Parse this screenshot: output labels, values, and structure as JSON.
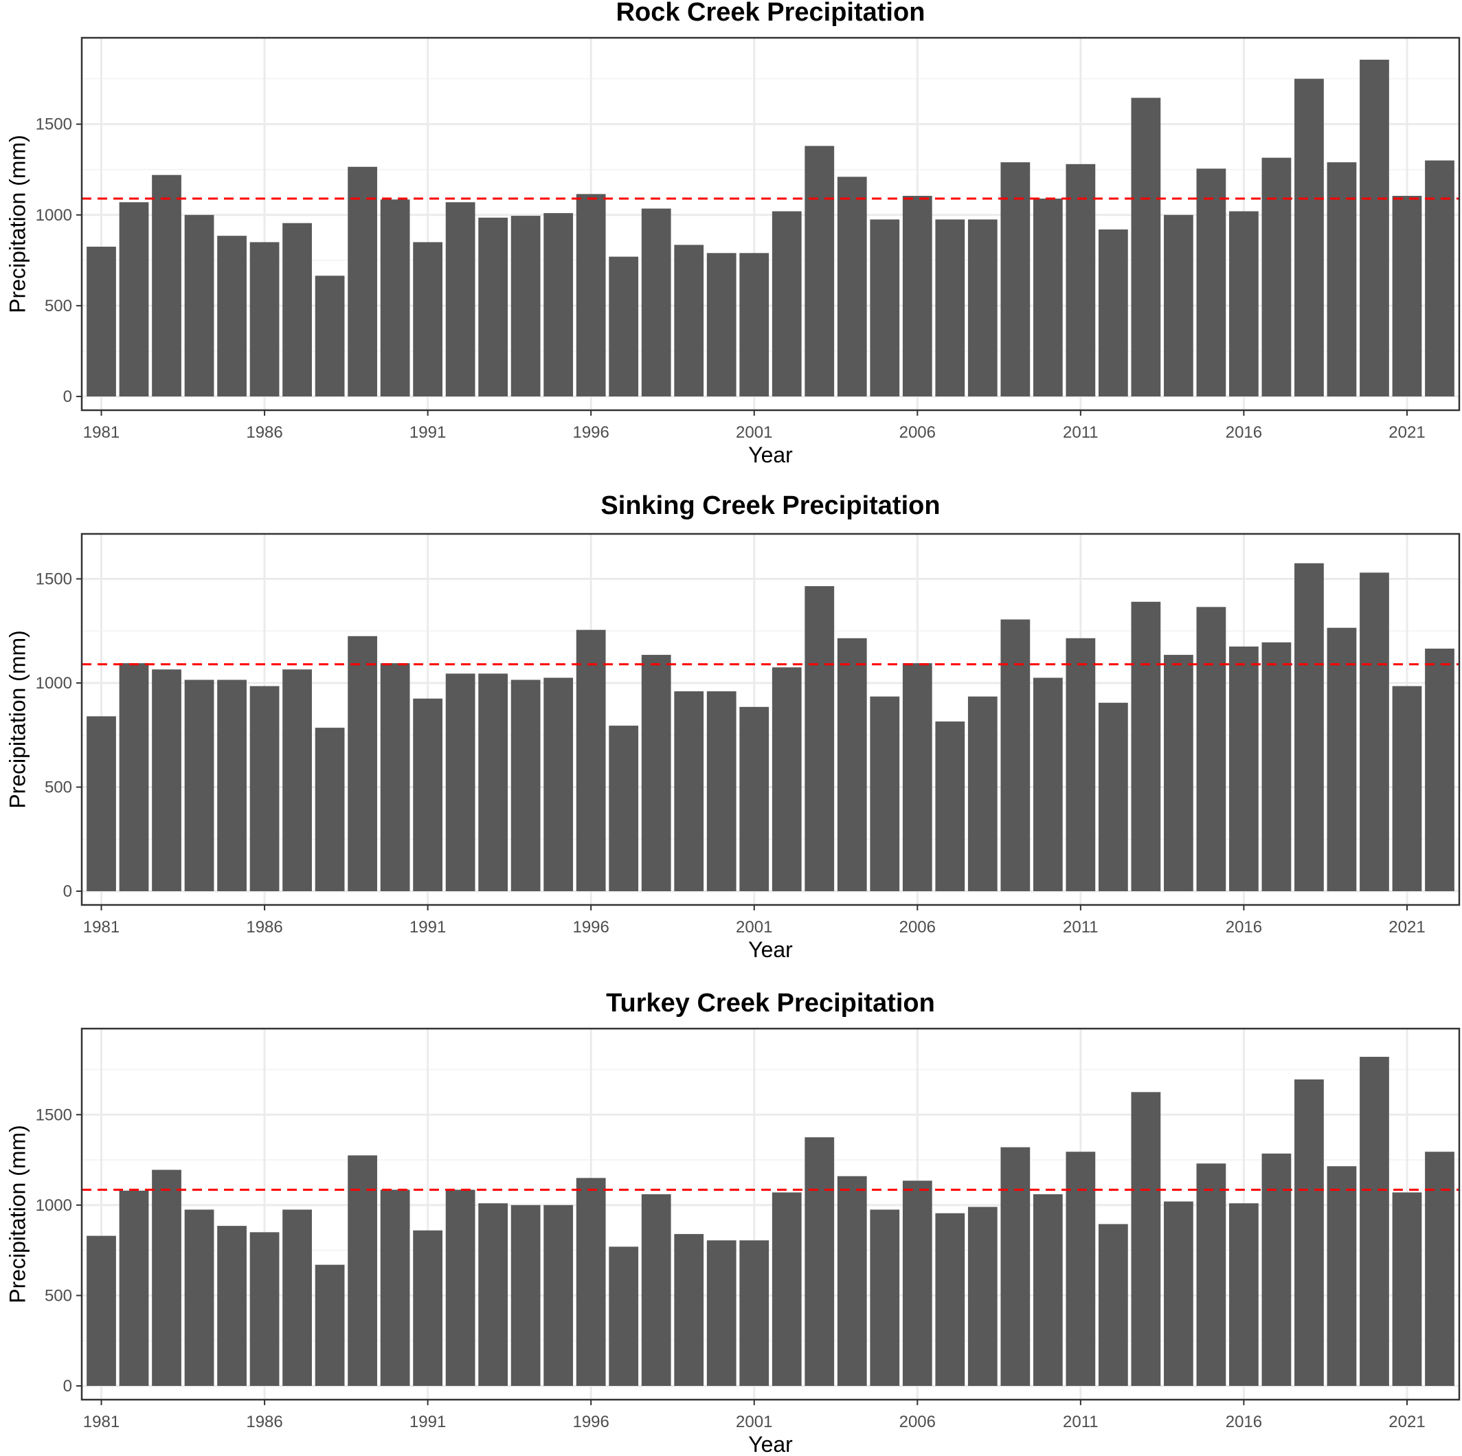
{
  "chart_data": [
    {
      "type": "bar",
      "title": "Rock Creek Precipitation",
      "xlabel": "Year",
      "ylabel": "Precipitation (mm)",
      "x": [
        1981,
        1982,
        1983,
        1984,
        1985,
        1986,
        1987,
        1988,
        1989,
        1990,
        1991,
        1992,
        1993,
        1994,
        1995,
        1996,
        1997,
        1998,
        1999,
        2000,
        2001,
        2002,
        2003,
        2004,
        2005,
        2006,
        2007,
        2008,
        2009,
        2010,
        2011,
        2012,
        2013,
        2014,
        2015,
        2016,
        2017,
        2018,
        2019,
        2020,
        2021,
        2022
      ],
      "values": [
        825,
        1070,
        1220,
        1000,
        885,
        850,
        955,
        665,
        1265,
        1085,
        850,
        1070,
        985,
        995,
        1010,
        1115,
        770,
        1035,
        835,
        790,
        790,
        1020,
        1380,
        1210,
        975,
        1105,
        975,
        975,
        1290,
        1090,
        1280,
        920,
        1645,
        1000,
        1255,
        1020,
        1315,
        1750,
        1290,
        1855,
        1105,
        1300
      ],
      "reference_line": 1090,
      "ylim": [
        0,
        1900
      ],
      "yticks": [
        0,
        500,
        1000,
        1500
      ],
      "xticks": [
        1981,
        1986,
        1991,
        1996,
        2001,
        2006,
        2011,
        2016,
        2021
      ],
      "bar_color": "#595959",
      "reference_line_color": "#ff0000",
      "grid": true,
      "legend": "none"
    },
    {
      "type": "bar",
      "title": "Sinking Creek Precipitation",
      "xlabel": "Year",
      "ylabel": "Precipitation (mm)",
      "x": [
        1981,
        1982,
        1983,
        1984,
        1985,
        1986,
        1987,
        1988,
        1989,
        1990,
        1991,
        1992,
        1993,
        1994,
        1995,
        1996,
        1997,
        1998,
        1999,
        2000,
        2001,
        2002,
        2003,
        2004,
        2005,
        2006,
        2007,
        2008,
        2009,
        2010,
        2011,
        2012,
        2013,
        2014,
        2015,
        2016,
        2017,
        2018,
        2019,
        2020,
        2021,
        2022
      ],
      "values": [
        840,
        1095,
        1065,
        1015,
        1015,
        985,
        1065,
        785,
        1225,
        1095,
        925,
        1045,
        1045,
        1015,
        1025,
        1255,
        795,
        1135,
        960,
        960,
        885,
        1075,
        1465,
        1215,
        935,
        1095,
        815,
        935,
        1305,
        1025,
        1215,
        905,
        1390,
        1135,
        1365,
        1175,
        1195,
        1575,
        1265,
        1530,
        985,
        1165
      ],
      "reference_line": 1090,
      "ylim": [
        0,
        1650
      ],
      "yticks": [
        0,
        500,
        1000,
        1500
      ],
      "xticks": [
        1981,
        1986,
        1991,
        1996,
        2001,
        2006,
        2011,
        2016,
        2021
      ],
      "bar_color": "#595959",
      "reference_line_color": "#ff0000",
      "grid": true,
      "legend": "none"
    },
    {
      "type": "bar",
      "title": "Turkey Creek Precipitation",
      "xlabel": "Year",
      "ylabel": "Precipitation (mm)",
      "x": [
        1981,
        1982,
        1983,
        1984,
        1985,
        1986,
        1987,
        1988,
        1989,
        1990,
        1991,
        1992,
        1993,
        1994,
        1995,
        1996,
        1997,
        1998,
        1999,
        2000,
        2001,
        2002,
        2003,
        2004,
        2005,
        2006,
        2007,
        2008,
        2009,
        2010,
        2011,
        2012,
        2013,
        2014,
        2015,
        2016,
        2017,
        2018,
        2019,
        2020,
        2021,
        2022
      ],
      "values": [
        830,
        1080,
        1195,
        975,
        885,
        850,
        975,
        670,
        1275,
        1085,
        860,
        1085,
        1010,
        1000,
        1000,
        1150,
        770,
        1060,
        840,
        805,
        805,
        1070,
        1375,
        1160,
        975,
        1135,
        955,
        990,
        1320,
        1060,
        1295,
        895,
        1625,
        1020,
        1230,
        1010,
        1285,
        1695,
        1215,
        1820,
        1070,
        1295
      ],
      "reference_line": 1085,
      "ylim": [
        0,
        1900
      ],
      "yticks": [
        0,
        500,
        1000,
        1500
      ],
      "xticks": [
        1981,
        1986,
        1991,
        1996,
        2001,
        2006,
        2011,
        2016,
        2021
      ],
      "bar_color": "#595959",
      "reference_line_color": "#ff0000",
      "grid": true,
      "legend": "none"
    }
  ]
}
